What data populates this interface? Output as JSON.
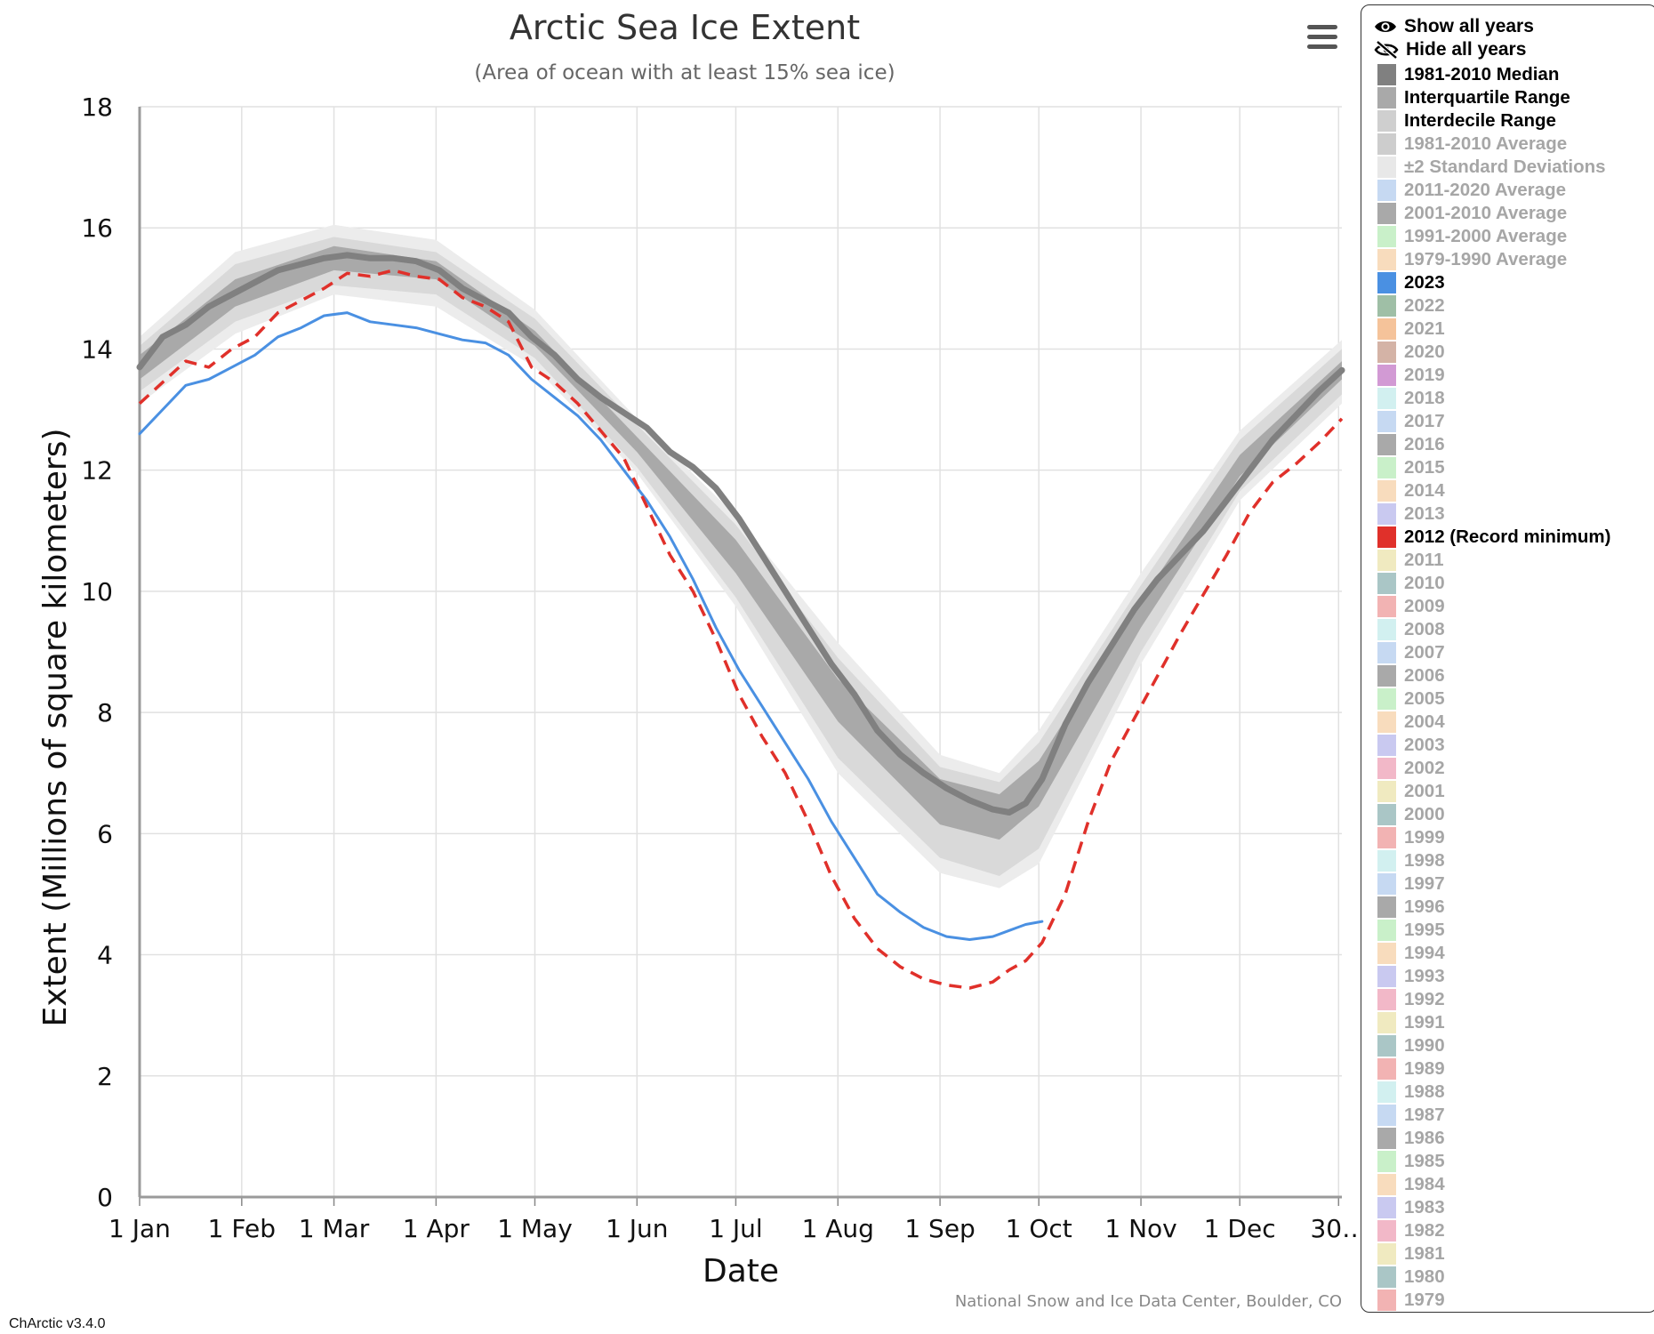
{
  "chart_data": {
    "type": "line",
    "title": "Arctic Sea Ice Extent",
    "subtitle": "(Area of ocean with at least 15% sea ice)",
    "xlabel": "Date",
    "ylabel": "Extent (Millions of square kilometers)",
    "xlim": [
      1,
      366
    ],
    "ylim": [
      0,
      18
    ],
    "yticks": [
      0,
      2,
      4,
      6,
      8,
      10,
      12,
      14,
      16,
      18
    ],
    "xticks": [
      {
        "day": 1,
        "label": "1 Jan"
      },
      {
        "day": 32,
        "label": "1 Feb"
      },
      {
        "day": 60,
        "label": "1 Mar"
      },
      {
        "day": 91,
        "label": "1 Apr"
      },
      {
        "day": 121,
        "label": "1 May"
      },
      {
        "day": 152,
        "label": "1 Jun"
      },
      {
        "day": 182,
        "label": "1 Jul"
      },
      {
        "day": 213,
        "label": "1 Aug"
      },
      {
        "day": 244,
        "label": "1 Sep"
      },
      {
        "day": 274,
        "label": "1 Oct"
      },
      {
        "day": 305,
        "label": "1 Nov"
      },
      {
        "day": 335,
        "label": "1 Dec"
      },
      {
        "day": 365,
        "label": "30…"
      }
    ],
    "x_unit": "day of year",
    "grid": true,
    "legend_position": "right",
    "series": [
      {
        "name": "1981-2010 Median",
        "color": "#808080",
        "style": "solid-thick",
        "x": [
          1,
          8,
          15,
          22,
          29,
          36,
          43,
          50,
          57,
          64,
          71,
          78,
          85,
          92,
          99,
          106,
          113,
          120,
          127,
          134,
          141,
          148,
          155,
          162,
          169,
          176,
          183,
          190,
          197,
          204,
          211,
          218,
          225,
          232,
          239,
          246,
          253,
          260,
          265,
          270,
          275,
          282,
          289,
          296,
          303,
          310,
          317,
          324,
          331,
          338,
          345,
          352,
          359,
          366
        ],
        "y": [
          13.7,
          14.2,
          14.4,
          14.7,
          14.9,
          15.1,
          15.3,
          15.4,
          15.5,
          15.55,
          15.5,
          15.5,
          15.45,
          15.3,
          15.0,
          14.8,
          14.6,
          14.2,
          13.9,
          13.5,
          13.2,
          12.95,
          12.7,
          12.3,
          12.05,
          11.7,
          11.2,
          10.6,
          10.0,
          9.4,
          8.8,
          8.3,
          7.7,
          7.3,
          7.0,
          6.75,
          6.55,
          6.4,
          6.35,
          6.5,
          6.9,
          7.8,
          8.5,
          9.1,
          9.7,
          10.2,
          10.6,
          11.0,
          11.5,
          12.0,
          12.5,
          12.9,
          13.3,
          13.65
        ]
      },
      {
        "name": "2023",
        "color": "#4a90e2",
        "style": "solid",
        "x": [
          1,
          8,
          15,
          22,
          29,
          36,
          43,
          50,
          57,
          64,
          71,
          78,
          85,
          92,
          99,
          106,
          113,
          120,
          127,
          134,
          141,
          148,
          155,
          162,
          169,
          176,
          183,
          190,
          197,
          204,
          211,
          218,
          225,
          232,
          239,
          246,
          253,
          260,
          265,
          270,
          275
        ],
        "y": [
          12.6,
          13.0,
          13.4,
          13.5,
          13.7,
          13.9,
          14.2,
          14.35,
          14.55,
          14.6,
          14.45,
          14.4,
          14.35,
          14.25,
          14.15,
          14.1,
          13.9,
          13.5,
          13.2,
          12.9,
          12.5,
          12.0,
          11.5,
          10.9,
          10.2,
          9.4,
          8.7,
          8.1,
          7.5,
          6.9,
          6.2,
          5.6,
          5.0,
          4.7,
          4.45,
          4.3,
          4.25,
          4.3,
          4.4,
          4.5,
          4.55
        ]
      },
      {
        "name": "2012 (Record minimum)",
        "color": "#e0302a",
        "style": "dashed",
        "x": [
          1,
          8,
          15,
          22,
          29,
          36,
          43,
          50,
          57,
          64,
          71,
          78,
          85,
          92,
          99,
          106,
          113,
          120,
          127,
          134,
          141,
          148,
          155,
          162,
          169,
          176,
          183,
          190,
          197,
          204,
          211,
          218,
          225,
          232,
          239,
          246,
          253,
          260,
          265,
          270,
          275,
          282,
          289,
          296,
          303,
          310,
          317,
          324,
          331,
          338,
          345,
          352,
          359,
          366
        ],
        "y": [
          13.1,
          13.45,
          13.8,
          13.7,
          14.0,
          14.2,
          14.6,
          14.8,
          15.0,
          15.25,
          15.2,
          15.3,
          15.2,
          15.15,
          14.85,
          14.7,
          14.45,
          13.7,
          13.45,
          13.1,
          12.65,
          12.2,
          11.4,
          10.6,
          10.0,
          9.2,
          8.3,
          7.6,
          7.0,
          6.2,
          5.3,
          4.6,
          4.1,
          3.8,
          3.6,
          3.5,
          3.45,
          3.55,
          3.75,
          3.9,
          4.2,
          5.0,
          6.2,
          7.2,
          7.9,
          8.6,
          9.3,
          9.95,
          10.6,
          11.3,
          11.8,
          12.1,
          12.45,
          12.85
        ]
      }
    ],
    "bands": [
      {
        "name": "±2 Standard Deviations",
        "color": "#ececec",
        "x": [
          1,
          30,
          60,
          91,
          121,
          152,
          182,
          213,
          244,
          262,
          274,
          305,
          335,
          366
        ],
        "upper": [
          14.2,
          15.6,
          16.05,
          15.8,
          14.65,
          12.85,
          11.25,
          9.15,
          7.3,
          7.0,
          7.7,
          10.3,
          12.65,
          14.15
        ],
        "lower": [
          13.1,
          14.25,
          14.9,
          14.7,
          13.7,
          11.95,
          9.75,
          7.0,
          5.35,
          5.1,
          5.5,
          8.8,
          11.5,
          13.1
        ]
      },
      {
        "name": "Interdecile Range",
        "color": "#d9d9d9",
        "x": [
          1,
          30,
          60,
          91,
          121,
          152,
          182,
          213,
          244,
          262,
          274,
          305,
          335,
          366
        ],
        "upper": [
          14.05,
          15.4,
          15.85,
          15.6,
          14.5,
          12.75,
          11.1,
          8.9,
          7.1,
          6.85,
          7.5,
          10.1,
          12.5,
          14.0
        ],
        "lower": [
          13.3,
          14.45,
          15.05,
          14.9,
          13.85,
          12.05,
          9.9,
          7.25,
          5.6,
          5.3,
          5.75,
          9.0,
          11.65,
          13.25
        ]
      },
      {
        "name": "Interquartile Range",
        "color": "#a9a9a9",
        "x": [
          1,
          30,
          60,
          91,
          121,
          152,
          182,
          213,
          244,
          262,
          274,
          305,
          335,
          366
        ],
        "upper": [
          13.9,
          15.15,
          15.7,
          15.45,
          14.3,
          12.55,
          10.85,
          8.55,
          6.9,
          6.65,
          7.2,
          9.85,
          12.25,
          13.8
        ],
        "lower": [
          13.5,
          14.7,
          15.3,
          15.15,
          14.05,
          12.3,
          10.3,
          7.85,
          6.15,
          5.9,
          6.45,
          9.4,
          11.9,
          13.5
        ]
      }
    ],
    "credit": "National Snow and Ice Data Center, Boulder, CO"
  },
  "legend": {
    "show_all_label": "Show all years",
    "hide_all_label": "Hide all years",
    "items": [
      {
        "label": "1981-2010 Median",
        "color": "#808080",
        "active": true
      },
      {
        "label": "Interquartile Range",
        "color": "#a9a9a9",
        "active": true
      },
      {
        "label": "Interdecile Range",
        "color": "#cfcfcf",
        "active": true
      },
      {
        "label": "1981-2010 Average",
        "color": "#cdcdcd",
        "active": false
      },
      {
        "label": "±2 Standard Deviations",
        "color": "#e8e8e8",
        "active": false
      },
      {
        "label": "2011-2020 Average",
        "color": "#c6d9f2",
        "active": false
      },
      {
        "label": "2001-2010 Average",
        "color": "#a9a9a9",
        "active": false
      },
      {
        "label": "1991-2000 Average",
        "color": "#c9f0c9",
        "active": false
      },
      {
        "label": "1979-1990 Average",
        "color": "#f8dcbd",
        "active": false
      },
      {
        "label": "2023",
        "color": "#4a90e2",
        "active": true
      },
      {
        "label": "2022",
        "color": "#9fbfa6",
        "active": false
      },
      {
        "label": "2021",
        "color": "#f5c39a",
        "active": false
      },
      {
        "label": "2020",
        "color": "#d4b3a6",
        "active": false
      },
      {
        "label": "2019",
        "color": "#d29ad4",
        "active": false
      },
      {
        "label": "2018",
        "color": "#d2f0f0",
        "active": false
      },
      {
        "label": "2017",
        "color": "#c6d9f2",
        "active": false
      },
      {
        "label": "2016",
        "color": "#a9a9a9",
        "active": false
      },
      {
        "label": "2015",
        "color": "#c9f0c9",
        "active": false
      },
      {
        "label": "2014",
        "color": "#f8dcbd",
        "active": false
      },
      {
        "label": "2013",
        "color": "#c9c9f0",
        "active": false
      },
      {
        "label": "2012 (Record minimum)",
        "color": "#e0302a",
        "active": true
      },
      {
        "label": "2011",
        "color": "#f0eac0",
        "active": false
      },
      {
        "label": "2010",
        "color": "#aac6c6",
        "active": false
      },
      {
        "label": "2009",
        "color": "#f2b3b3",
        "active": false
      },
      {
        "label": "2008",
        "color": "#d2f0f0",
        "active": false
      },
      {
        "label": "2007",
        "color": "#c6d9f2",
        "active": false
      },
      {
        "label": "2006",
        "color": "#a9a9a9",
        "active": false
      },
      {
        "label": "2005",
        "color": "#c9f0c9",
        "active": false
      },
      {
        "label": "2004",
        "color": "#f8dcbd",
        "active": false
      },
      {
        "label": "2003",
        "color": "#c9c9f0",
        "active": false
      },
      {
        "label": "2002",
        "color": "#f2b8c8",
        "active": false
      },
      {
        "label": "2001",
        "color": "#f0eac0",
        "active": false
      },
      {
        "label": "2000",
        "color": "#aac6c6",
        "active": false
      },
      {
        "label": "1999",
        "color": "#f2b3b3",
        "active": false
      },
      {
        "label": "1998",
        "color": "#d2f0f0",
        "active": false
      },
      {
        "label": "1997",
        "color": "#c6d9f2",
        "active": false
      },
      {
        "label": "1996",
        "color": "#a9a9a9",
        "active": false
      },
      {
        "label": "1995",
        "color": "#c9f0c9",
        "active": false
      },
      {
        "label": "1994",
        "color": "#f8dcbd",
        "active": false
      },
      {
        "label": "1993",
        "color": "#c9c9f0",
        "active": false
      },
      {
        "label": "1992",
        "color": "#f2b8c8",
        "active": false
      },
      {
        "label": "1991",
        "color": "#f0eac0",
        "active": false
      },
      {
        "label": "1990",
        "color": "#aac6c6",
        "active": false
      },
      {
        "label": "1989",
        "color": "#f2b3b3",
        "active": false
      },
      {
        "label": "1988",
        "color": "#d2f0f0",
        "active": false
      },
      {
        "label": "1987",
        "color": "#c6d9f2",
        "active": false
      },
      {
        "label": "1986",
        "color": "#a9a9a9",
        "active": false
      },
      {
        "label": "1985",
        "color": "#c9f0c9",
        "active": false
      },
      {
        "label": "1984",
        "color": "#f8dcbd",
        "active": false
      },
      {
        "label": "1983",
        "color": "#c9c9f0",
        "active": false
      },
      {
        "label": "1982",
        "color": "#f2b8c8",
        "active": false
      },
      {
        "label": "1981",
        "color": "#f0eac0",
        "active": false
      },
      {
        "label": "1980",
        "color": "#aac6c6",
        "active": false
      },
      {
        "label": "1979",
        "color": "#f2b3b3",
        "active": false
      }
    ]
  },
  "menu": {
    "icon": "hamburger-menu-icon"
  },
  "version": "ChArctic v3.4.0"
}
